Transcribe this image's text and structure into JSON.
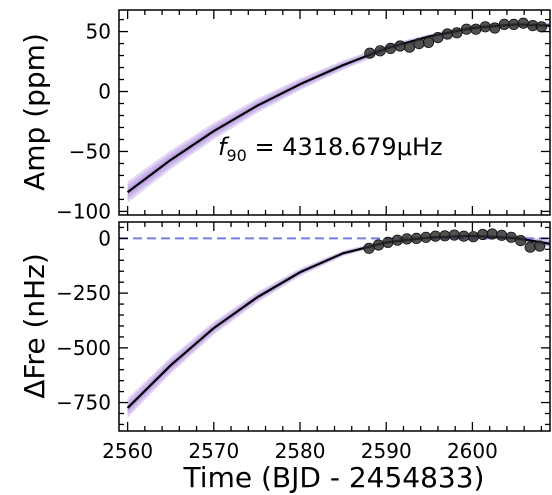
{
  "chart_data": [
    {
      "type": "scatter",
      "panel": "top",
      "ylabel": "Amp (ppm)",
      "xlim": [
        2559.0,
        2609.0
      ],
      "ylim": [
        -103,
        68
      ],
      "yticks": [
        -100,
        -50,
        0,
        50
      ],
      "ytick_labels": [
        "−100",
        "−50",
        "0",
        "50"
      ],
      "annotation": {
        "italic": "f",
        "sub": "90",
        "rest": " = 4318.679μHz"
      },
      "model": {
        "name": "",
        "color": "#000000",
        "band_color": "#9b6fd6",
        "x": [
          2560,
          2565,
          2570,
          2575,
          2580,
          2585,
          2590,
          2595,
          2600,
          2605,
          2609
        ],
        "y": [
          -84,
          -57,
          -33,
          -12,
          6,
          22,
          36,
          46,
          53,
          56,
          55
        ],
        "band_halfwidth": [
          9,
          8,
          7,
          6,
          5,
          4,
          3,
          2,
          2,
          2,
          3
        ]
      },
      "points": {
        "name": "",
        "color": "#2b2b2b",
        "x": [
          2588.1,
          2589.3,
          2590.5,
          2591.6,
          2592.7,
          2593.8,
          2594.9,
          2596.0,
          2597.1,
          2598.2,
          2599.3,
          2600.4,
          2601.5,
          2602.6,
          2603.7,
          2604.8,
          2605.9,
          2607.0,
          2608.0
        ],
        "y": [
          32,
          34,
          36,
          38,
          37,
          40,
          41,
          45,
          48,
          49,
          52,
          52,
          54,
          53,
          56,
          56,
          57,
          55,
          54
        ]
      }
    },
    {
      "type": "scatter",
      "panel": "bottom",
      "xlabel": "Time (BJD - 2454833)",
      "ylabel": "ΔFre (nHz)",
      "xlim": [
        2559.0,
        2609.0
      ],
      "ylim": [
        -880,
        75
      ],
      "xticks": [
        2560,
        2570,
        2580,
        2590,
        2600
      ],
      "xtick_labels": [
        "2560",
        "2570",
        "2580",
        "2590",
        "2600"
      ],
      "yticks": [
        -750,
        -500,
        -250,
        0
      ],
      "ytick_labels": [
        "−750",
        "−500",
        "−250",
        "0"
      ],
      "reference_line": {
        "y": 0,
        "color": "#7b7bea",
        "style": "dashed"
      },
      "model": {
        "name": "",
        "color": "#000000",
        "band_color": "#9b6fd6",
        "x": [
          2560,
          2565,
          2570,
          2575,
          2580,
          2585,
          2590,
          2595,
          2600,
          2605,
          2609
        ],
        "y": [
          -775,
          -580,
          -410,
          -270,
          -155,
          -68,
          -18,
          4,
          12,
          2,
          -25
        ],
        "band_halfwidth": [
          45,
          38,
          30,
          24,
          18,
          13,
          9,
          7,
          8,
          12,
          18
        ]
      },
      "points": {
        "name": "",
        "color": "#2b2b2b",
        "x": [
          2588.0,
          2589.1,
          2590.2,
          2591.3,
          2592.4,
          2593.5,
          2594.6,
          2595.7,
          2596.8,
          2597.9,
          2599.0,
          2600.1,
          2601.2,
          2602.3,
          2603.4,
          2604.5,
          2605.6,
          2606.7,
          2607.8
        ],
        "y": [
          -45,
          -30,
          -18,
          -8,
          -2,
          0,
          5,
          10,
          12,
          15,
          10,
          8,
          18,
          20,
          14,
          5,
          -10,
          -40,
          -35
        ]
      }
    }
  ]
}
